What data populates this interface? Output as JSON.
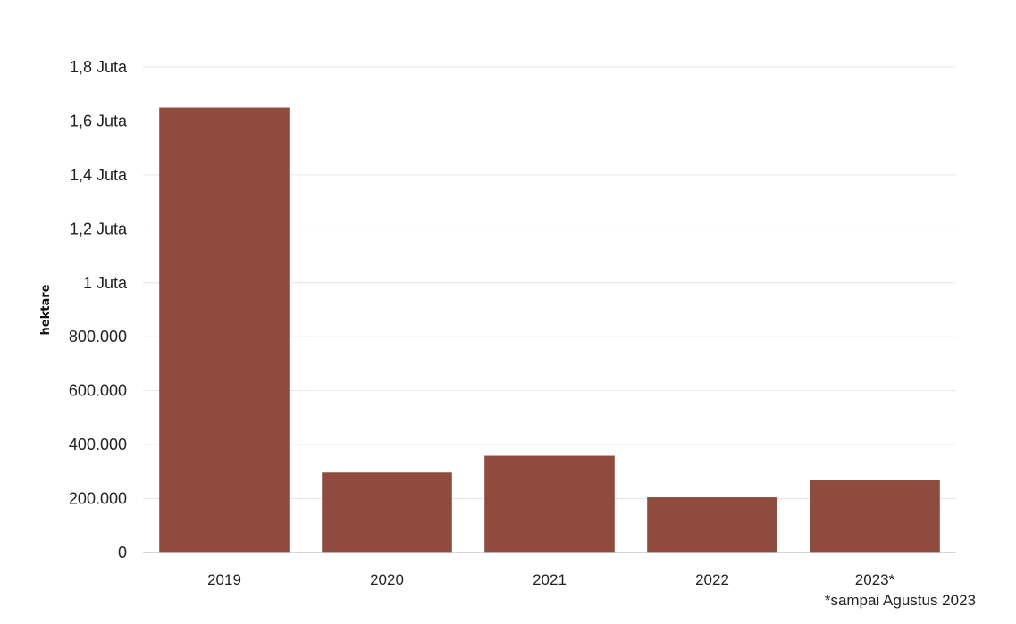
{
  "chart_data": {
    "type": "bar",
    "ylabel": "hektare",
    "categories": [
      "2019",
      "2020",
      "2021",
      "2022",
      "2023*"
    ],
    "values": [
      1649258,
      296942,
      358867,
      204894,
      267935
    ],
    "ylim": [
      0,
      1800000
    ],
    "yticks": [
      0,
      200000,
      400000,
      600000,
      800000,
      1000000,
      1200000,
      1400000,
      1600000,
      1800000
    ],
    "ytick_labels": [
      "0",
      "200.000",
      "400.000",
      "600.000",
      "800.000",
      "1 Juta",
      "1,2 Juta",
      "1,4 Juta",
      "1,6 Juta",
      "1,8 Juta"
    ],
    "grid": true,
    "bar_color": "#8f4b3e",
    "note": "*sampai Agustus 2023"
  }
}
